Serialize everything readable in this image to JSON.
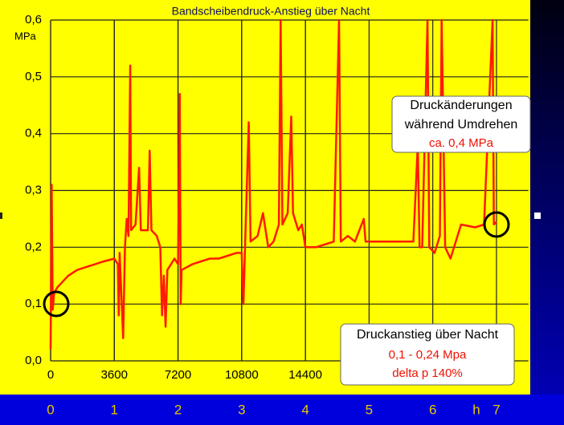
{
  "chart_data": {
    "type": "line",
    "title": "Bandscheibendruck-Anstieg über Nacht",
    "y_unit": "MPa",
    "xlim": [
      0,
      27000
    ],
    "ylim": [
      0,
      0.6
    ],
    "xticks": [
      0,
      3600,
      7200,
      10800,
      14400
    ],
    "yticks": [
      {
        "value": 0,
        "label": "0,0"
      },
      {
        "value": 0.1,
        "label": "0,1"
      },
      {
        "value": 0.2,
        "label": "0,2"
      },
      {
        "value": 0.3,
        "label": "0,3"
      },
      {
        "value": 0.4,
        "label": "0,4"
      },
      {
        "value": 0.5,
        "label": "0,5"
      },
      {
        "value": 0.6,
        "label": "0,6"
      }
    ],
    "x2lim": [
      0,
      7.5
    ],
    "x2ticks": [
      0,
      1,
      2,
      3,
      4,
      5,
      6,
      7
    ],
    "x2_unit": "h",
    "grid": true,
    "series": [
      {
        "color": "#ff1a00",
        "x": [
          0,
          60,
          120,
          200,
          400,
          700,
          1000,
          1500,
          2000,
          2500,
          3000,
          3600,
          3800,
          3850,
          3900,
          4100,
          4200,
          4300,
          4400,
          4500,
          4550,
          4800,
          5000,
          5100,
          5500,
          5600,
          5700,
          6000,
          6200,
          6300,
          6400,
          6500,
          6600,
          6800,
          7000,
          7200,
          7300,
          7350,
          7400,
          8000,
          8500,
          9000,
          9500,
          10000,
          10500,
          10800,
          10900,
          11000,
          11200,
          11300,
          11700,
          12000,
          12300,
          12600,
          12900,
          13000,
          13100,
          13400,
          13600,
          13700,
          14000,
          14200,
          14400,
          15000,
          15500,
          16000,
          16300,
          16400,
          16800,
          17200,
          17700,
          17800,
          18500,
          19500,
          20500,
          20750,
          20850,
          21000,
          21300,
          21400,
          21700,
          22000,
          22100,
          22300,
          22600,
          23200,
          24000,
          24500,
          24980,
          25050,
          25200
        ],
        "values": [
          0.02,
          0.31,
          0.09,
          0.12,
          0.13,
          0.14,
          0.15,
          0.16,
          0.165,
          0.17,
          0.175,
          0.18,
          0.17,
          0.08,
          0.19,
          0.04,
          0.2,
          0.25,
          0.22,
          0.52,
          0.23,
          0.24,
          0.34,
          0.23,
          0.23,
          0.37,
          0.23,
          0.22,
          0.2,
          0.08,
          0.15,
          0.06,
          0.16,
          0.17,
          0.18,
          0.17,
          0.47,
          0.1,
          0.16,
          0.17,
          0.175,
          0.18,
          0.18,
          0.185,
          0.19,
          0.19,
          0.1,
          0.21,
          0.42,
          0.21,
          0.22,
          0.26,
          0.2,
          0.21,
          0.24,
          0.6,
          0.24,
          0.26,
          0.43,
          0.26,
          0.23,
          0.24,
          0.2,
          0.2,
          0.205,
          0.21,
          0.6,
          0.21,
          0.22,
          0.21,
          0.25,
          0.21,
          0.21,
          0.21,
          0.21,
          0.38,
          0.2,
          0.2,
          0.6,
          0.2,
          0.19,
          0.22,
          0.6,
          0.2,
          0.18,
          0.24,
          0.235,
          0.24,
          0.6,
          0.24,
          0.245
        ]
      }
    ],
    "annotations": [
      {
        "lines": [
          "Druckänderungen",
          "während Umdrehen",
          "ca. 0,4 MPa"
        ]
      },
      {
        "lines": [
          "Druckanstieg über Nacht",
          "0,1 - 0,24 Mpa",
          "delta p 140%"
        ]
      }
    ]
  }
}
